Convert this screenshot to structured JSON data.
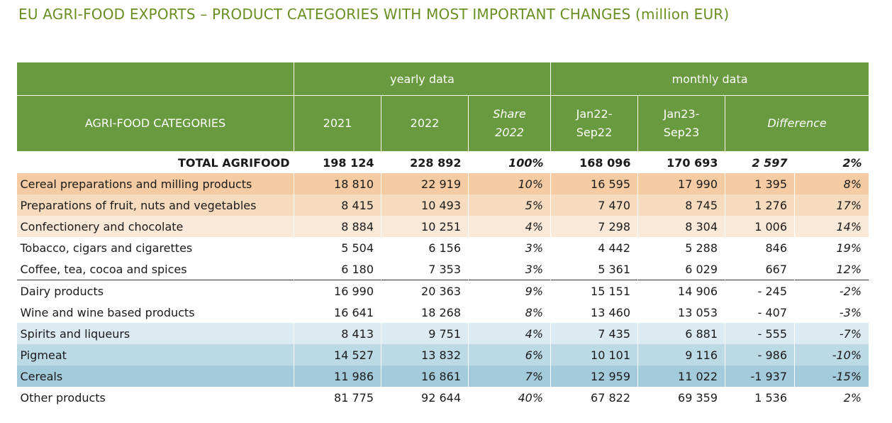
{
  "title": "EU AGRI-FOOD EXPORTS – PRODUCT CATEGORIES WITH MOST IMPORTANT CHANGES (million EUR)",
  "headers": {
    "yearly": "yearly data",
    "monthly": "monthly data",
    "categories": "AGRI-FOOD CATEGORIES",
    "y2021": "2021",
    "y2022": "2022",
    "share_line1": "Share",
    "share_line2": "2022",
    "jan22_line1": "Jan22-",
    "jan22_line2": "Sep22",
    "jan23_line1": "Jan23-",
    "jan23_line2": "Sep23",
    "difference": "Difference"
  },
  "total": {
    "label": "TOTAL AGRIFOOD",
    "y2021": "198 124",
    "y2022": "228 892",
    "share": "100%",
    "jan22": "168 096",
    "jan23": "170 693",
    "diff": "2 597",
    "diff_pct": "2%"
  },
  "rows": [
    {
      "label": "Cereal preparations and milling products",
      "y2021": "18 810",
      "y2022": "22 919",
      "share": "10%",
      "jan22": "16 595",
      "jan23": "17 990",
      "diff": "1 395",
      "diff_pct": "8%",
      "bg": "#f4cba2"
    },
    {
      "label": "Preparations of fruit, nuts and vegetables",
      "y2021": "8 415",
      "y2022": "10 493",
      "share": "5%",
      "jan22": "7 470",
      "jan23": "8 745",
      "diff": "1 276",
      "diff_pct": "17%",
      "bg": "#f7dbbf"
    },
    {
      "label": "Confectionery and chocolate",
      "y2021": "8 884",
      "y2022": "10 251",
      "share": "4%",
      "jan22": "7 298",
      "jan23": "8 304",
      "diff": "1 006",
      "diff_pct": "14%",
      "bg": "#fae8d8"
    },
    {
      "label": "Tobacco, cigars and cigarettes",
      "y2021": "5 504",
      "y2022": "6 156",
      "share": "3%",
      "jan22": "4 442",
      "jan23": "5 288",
      "diff": "846",
      "diff_pct": "19%",
      "bg": "#ffffff"
    },
    {
      "label": "Coffee, tea, cocoa and spices",
      "y2021": "6 180",
      "y2022": "7 353",
      "share": "3%",
      "jan22": "5 361",
      "jan23": "6 029",
      "diff": "667",
      "diff_pct": "12%",
      "bg": "#ffffff"
    },
    {
      "label": "Dairy products",
      "y2021": "16 990",
      "y2022": "20 363",
      "share": "9%",
      "jan22": "15 151",
      "jan23": "14 906",
      "diff": "- 245",
      "diff_pct": "-2%",
      "bg": "#ffffff"
    },
    {
      "label": "Wine and wine based products",
      "y2021": "16 641",
      "y2022": "18 268",
      "share": "8%",
      "jan22": "13 460",
      "jan23": "13 053",
      "diff": "- 407",
      "diff_pct": "-3%",
      "bg": "#ffffff"
    },
    {
      "label": "Spirits and liqueurs",
      "y2021": "8 413",
      "y2022": "9 751",
      "share": "4%",
      "jan22": "7 435",
      "jan23": "6 881",
      "diff": "- 555",
      "diff_pct": "-7%",
      "bg": "#dcebf2"
    },
    {
      "label": "Pigmeat",
      "y2021": "14 527",
      "y2022": "13 832",
      "share": "6%",
      "jan22": "10 101",
      "jan23": "9 116",
      "diff": "- 986",
      "diff_pct": "-10%",
      "bg": "#bcd9e6"
    },
    {
      "label": "Cereals",
      "y2021": "11 986",
      "y2022": "16 861",
      "share": "7%",
      "jan22": "12 959",
      "jan23": "11 022",
      "diff": "-1 937",
      "diff_pct": "-15%",
      "bg": "#a4cbdc"
    },
    {
      "label": "Other products",
      "y2021": "81 775",
      "y2022": "92 644",
      "share": "40%",
      "jan22": "67 822",
      "jan23": "69 359",
      "diff": "1 536",
      "diff_pct": "2%",
      "bg": "#ffffff"
    }
  ]
}
